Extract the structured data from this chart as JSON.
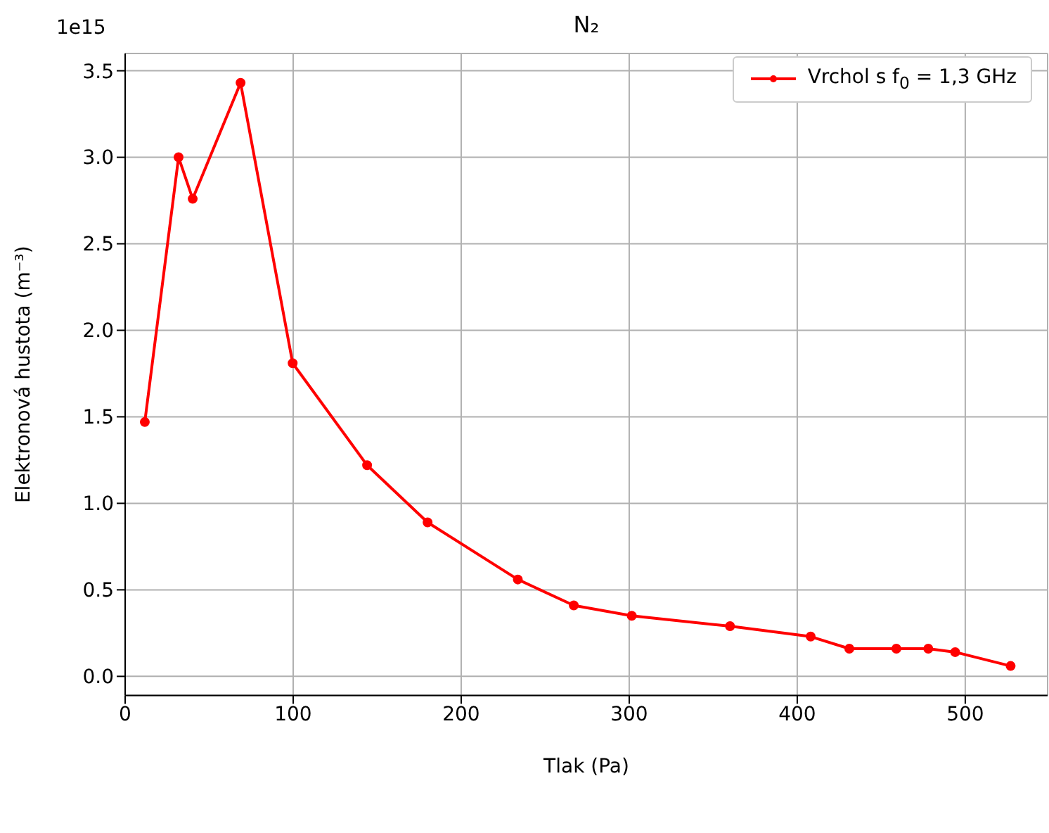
{
  "chart_data": {
    "type": "line",
    "title": "N₂",
    "xlabel": "Tlak (Pa)",
    "ylabel": "Elektronová hustota (m⁻³)",
    "annotations": [
      "1e15"
    ],
    "x": [
      11.7,
      31.8,
      40.2,
      68.7,
      99.7,
      144,
      180,
      233.7,
      267,
      301.5,
      360,
      408,
      431,
      459,
      478,
      494,
      527
    ],
    "series": [
      {
        "name": "Vrchol s f$_{0}$ = 1,3 GHz",
        "color": "#ff0000",
        "values": [
          1.47,
          3.0,
          2.76,
          3.43,
          1.81,
          1.22,
          0.89,
          0.56,
          0.41,
          0.35,
          0.29,
          0.23,
          0.16,
          0.16,
          0.16,
          0.14,
          0.06
        ]
      }
    ],
    "xlim": [
      0,
      549
    ],
    "ylim": [
      -0.11,
      3.6
    ],
    "xticks": [
      0,
      100,
      200,
      300,
      400,
      500
    ],
    "yticks": [
      {
        "value": 0,
        "label": "0.0"
      },
      0.5,
      {
        "value": 1,
        "label": "1.0"
      },
      1.5,
      {
        "value": 2,
        "label": "2.0"
      },
      2.5,
      {
        "value": 3,
        "label": "3.0"
      },
      3.5
    ],
    "grid": true,
    "legend": "top right",
    "marker": "circle",
    "line_style": "solid"
  }
}
